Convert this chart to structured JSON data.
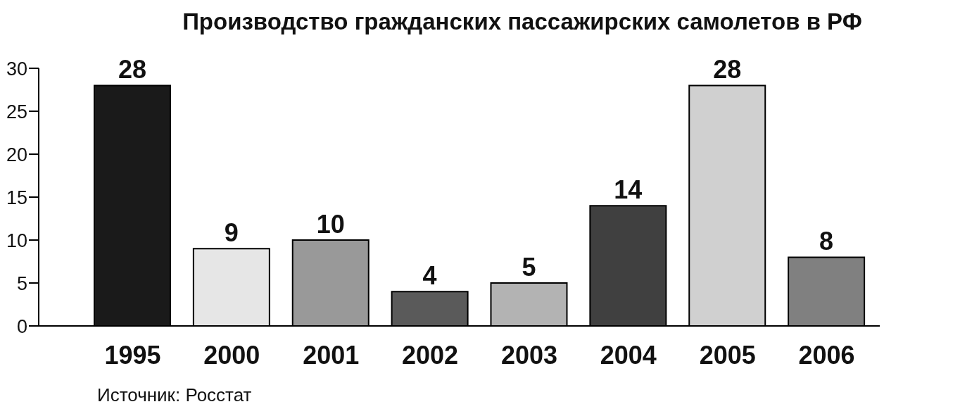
{
  "chart_data": {
    "type": "bar",
    "title": "Производство гражданских пассажирских самолетов в РФ",
    "categories": [
      "1995",
      "2000",
      "2001",
      "2002",
      "2003",
      "2004",
      "2005",
      "2006"
    ],
    "values": [
      28,
      9,
      10,
      4,
      5,
      14,
      28,
      8
    ],
    "colors": [
      "#1a1a1a",
      "#e6e6e6",
      "#999999",
      "#5a5a5a",
      "#b3b3b3",
      "#404040",
      "#d0d0d0",
      "#808080"
    ],
    "ylim": [
      0,
      30
    ],
    "yticks": [
      0,
      5,
      10,
      15,
      20,
      25,
      30
    ],
    "grid": false,
    "legend": false,
    "data_labels": true,
    "annotations": [
      "Источник: Росстат"
    ]
  }
}
